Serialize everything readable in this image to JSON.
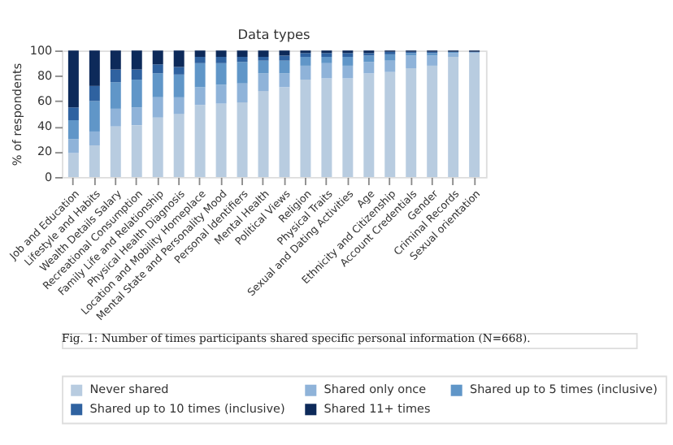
{
  "chart_data": {
    "type": "bar",
    "stacked": true,
    "title": "Data types",
    "ylabel": "% of respondents",
    "categories": [
      "Job and Education",
      "Lifestyle and Habits",
      "Wealth Details Salary",
      "Recreational Consumption",
      "Family Life and Relationship",
      "Physical Health Diagnosis",
      "Location and Mobility Homeplace",
      "Mental State and Personality Mood",
      "Personal Identifiers",
      "Mental Health",
      "Political Views",
      "Religion",
      "Physical Traits",
      "Sexual and Dating Activities",
      "Age",
      "Ethnicity and Citizenship",
      "Account Credentials",
      "Gender",
      "Criminal Records",
      "Sexual orientation"
    ],
    "series": [
      {
        "name": "Never shared",
        "color": "#b8cce0",
        "values": [
          19,
          25,
          40,
          41,
          47,
          50,
          57,
          58,
          59,
          68,
          71,
          77,
          78,
          78,
          82,
          83,
          86,
          88,
          95,
          98
        ]
      },
      {
        "name": "Shared only once",
        "color": "#8fb3d9",
        "values": [
          11,
          11,
          14,
          14,
          16,
          13,
          14,
          15,
          15,
          14,
          11,
          11,
          12,
          10,
          9,
          9,
          10,
          8,
          3,
          1
        ]
      },
      {
        "name": "Shared up to 5 times (inclusive)",
        "color": "#6096c8",
        "values": [
          15,
          24,
          21,
          22,
          19,
          18,
          19,
          17,
          17,
          10,
          10,
          7,
          5,
          7,
          5,
          5,
          2,
          2,
          1,
          0
        ]
      },
      {
        "name": "Shared up to 10 times (inclusive)",
        "color": "#2f62a0",
        "values": [
          10,
          12,
          10,
          8,
          7,
          6,
          5,
          5,
          4,
          3,
          4,
          3,
          3,
          3,
          2,
          2,
          1,
          1,
          0,
          0
        ]
      },
      {
        "name": "Shared 11+ times",
        "color": "#0d2a5a",
        "values": [
          45,
          28,
          15,
          15,
          11,
          13,
          5,
          5,
          5,
          5,
          4,
          2,
          2,
          2,
          2,
          1,
          1,
          1,
          1,
          1
        ]
      }
    ],
    "ylim": [
      0,
      100
    ],
    "yticks": [
      0,
      20,
      40,
      60,
      80,
      100
    ],
    "grid": false,
    "legend": "bottom",
    "annotations": [
      "Fig. 1: Number of times participants shared specific personal information (N=668)."
    ]
  }
}
